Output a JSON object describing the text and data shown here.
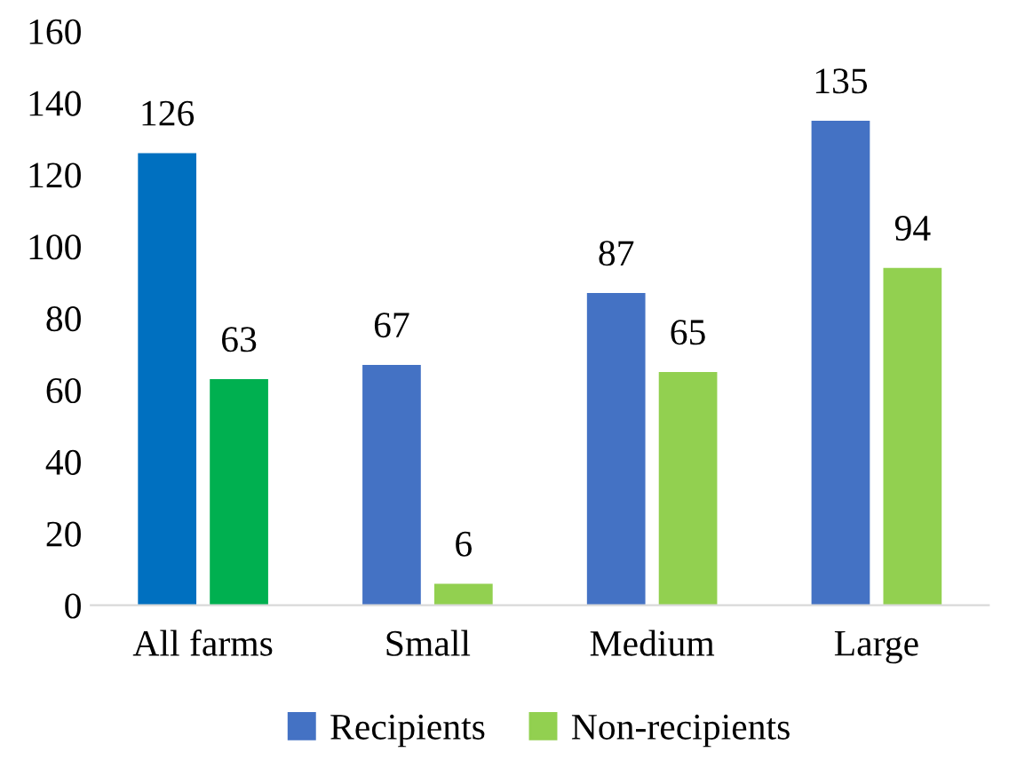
{
  "chart_data": {
    "type": "bar",
    "categories": [
      "All farms",
      "Small",
      "Medium",
      "Large"
    ],
    "series": [
      {
        "name": "Recipients",
        "color": "#4472c4",
        "colors": [
          "#0070c0",
          "#4472c4",
          "#4472c4",
          "#4472c4"
        ],
        "values": [
          126,
          67,
          87,
          135
        ]
      },
      {
        "name": "Non-recipients",
        "color": "#92d050",
        "colors": [
          "#00b050",
          "#92d050",
          "#92d050",
          "#92d050"
        ],
        "values": [
          63,
          6,
          65,
          94
        ]
      }
    ],
    "ylim": [
      0,
      160
    ],
    "yticks": [
      0,
      20,
      40,
      60,
      80,
      100,
      120,
      140,
      160
    ],
    "data_labels": true,
    "grid": false,
    "legend": "bottom"
  }
}
